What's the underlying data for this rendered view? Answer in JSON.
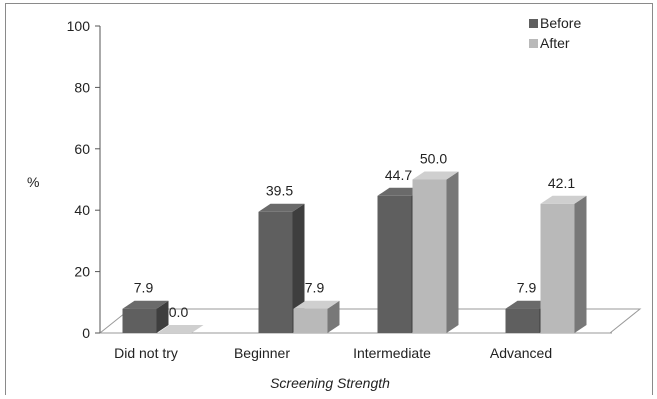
{
  "chart_data": {
    "type": "bar",
    "title": "",
    "xlabel": "Screening Strength",
    "ylabel": "%",
    "ylim": [
      0,
      100
    ],
    "yticks": [
      0,
      20,
      40,
      60,
      80,
      100
    ],
    "categories": [
      "Did not try",
      "Beginner",
      "Intermediate",
      "Advanced"
    ],
    "series": [
      {
        "name": "Before",
        "values": [
          7.9,
          39.5,
          44.7,
          7.9
        ],
        "value_labels": [
          "7.9",
          "39.5",
          "44.7",
          "7.9"
        ],
        "color": "#5f5f5f"
      },
      {
        "name": "After",
        "values": [
          0.0,
          7.9,
          50.0,
          42.1
        ],
        "value_labels": [
          "0.0",
          "7.9",
          "50.0",
          "42.1"
        ],
        "color": "#b9b9b9"
      }
    ],
    "legend": "top-right",
    "grid": false,
    "style": "3d-column"
  }
}
